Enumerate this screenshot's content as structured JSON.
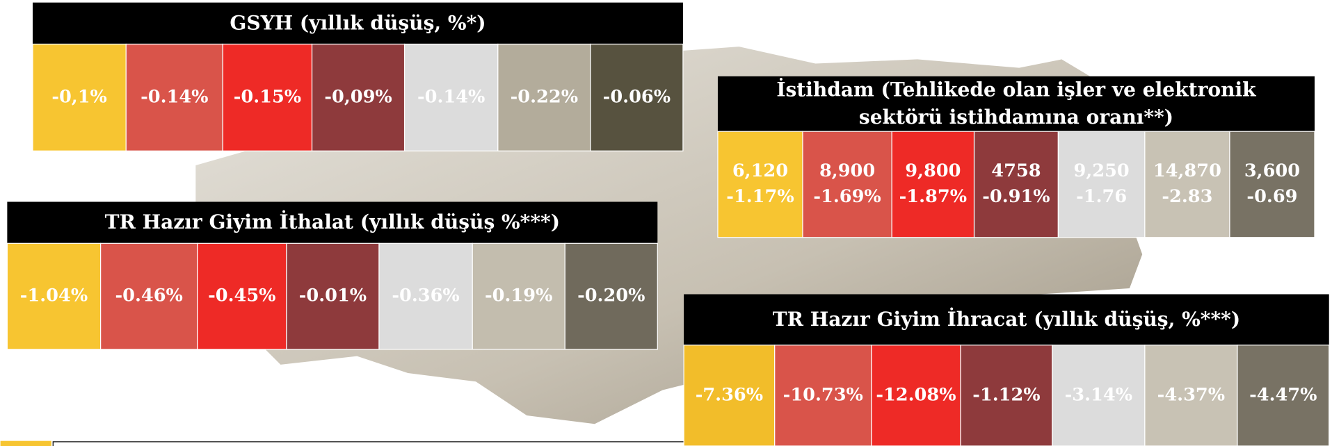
{
  "panels": [
    {
      "title": [
        "GSYH (yıllık düşüş, %*)"
      ],
      "cells": [
        [
          "-0,1%"
        ],
        [
          "-0.14%"
        ],
        [
          "-0.15%"
        ],
        [
          "-0,09%"
        ],
        [
          "-0.14%"
        ],
        [
          "-0.22%"
        ],
        [
          "-0.06%"
        ]
      ]
    },
    {
      "title": [
        "İstihdam  (Tehlikede olan işler ve elektronik",
        "sektörü istihdamına oranı**)"
      ],
      "cells": [
        [
          "6,120",
          "-1.17%"
        ],
        [
          "8,900",
          "-1.69%"
        ],
        [
          "9,800",
          "-1.87%"
        ],
        [
          "4758",
          "-0.91%"
        ],
        [
          "9,250",
          "-1.76"
        ],
        [
          "14,870",
          "-2.83"
        ],
        [
          "3,600",
          "-0.69"
        ]
      ]
    },
    {
      "title": [
        "TR Hazır Giyim İthalat (yıllık düşüş %***)"
      ],
      "cells": [
        [
          "-1.04%"
        ],
        [
          "-0.46%"
        ],
        [
          "-0.45%"
        ],
        [
          "-0.01%"
        ],
        [
          "-0.36%"
        ],
        [
          "-0.19%"
        ],
        [
          "-0.20%"
        ]
      ]
    },
    {
      "title": [
        "TR Hazır Giyim İhracat (yıllık düşüş, %***)"
      ],
      "cells": [
        [
          "-7.36%"
        ],
        [
          "-10.73%"
        ],
        [
          "-12.08%"
        ],
        [
          "-1.12%"
        ],
        [
          "-3.14%"
        ],
        [
          "-4.37%"
        ],
        [
          "-4.47%"
        ]
      ]
    }
  ]
}
